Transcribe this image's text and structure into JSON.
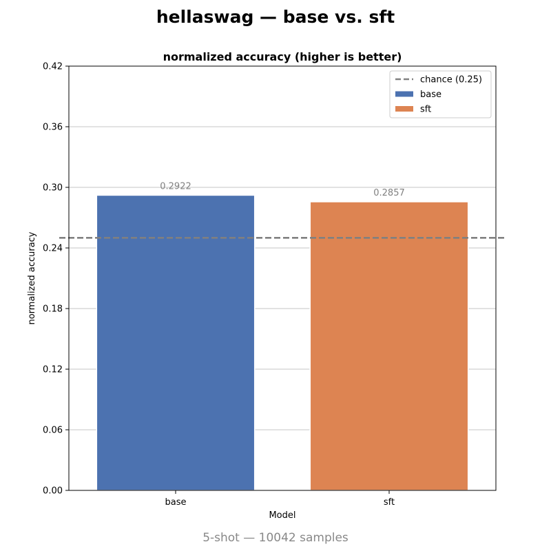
{
  "suptitle": "hellaswag — base vs. sft",
  "footer": "5-shot — 10042 samples",
  "chart_data": {
    "type": "bar",
    "title": "normalized accuracy (higher is better)",
    "xlabel": "Model",
    "ylabel": "normalized accuracy",
    "categories": [
      "base",
      "sft"
    ],
    "values": [
      0.2922,
      0.2857
    ],
    "value_labels": [
      "0.2922",
      "0.2857"
    ],
    "colors": [
      "#4c72b0",
      "#dd8452"
    ],
    "ylim": [
      0,
      0.42
    ],
    "yticks": [
      0.0,
      0.06,
      0.12,
      0.18,
      0.24,
      0.3,
      0.36,
      0.42
    ],
    "ytick_labels": [
      "0.00",
      "0.06",
      "0.12",
      "0.18",
      "0.24",
      "0.30",
      "0.36",
      "0.42"
    ],
    "grid": "y",
    "reference_line": {
      "value": 0.25,
      "label": "chance (0.25)",
      "color": "#808080",
      "style": "dashed"
    },
    "legend": {
      "placement": "top-right",
      "entries": [
        {
          "label": "chance (0.25)",
          "kind": "line",
          "color": "#808080"
        },
        {
          "label": "base",
          "kind": "patch",
          "color": "#4c72b0"
        },
        {
          "label": "sft",
          "kind": "patch",
          "color": "#dd8452"
        }
      ]
    }
  }
}
